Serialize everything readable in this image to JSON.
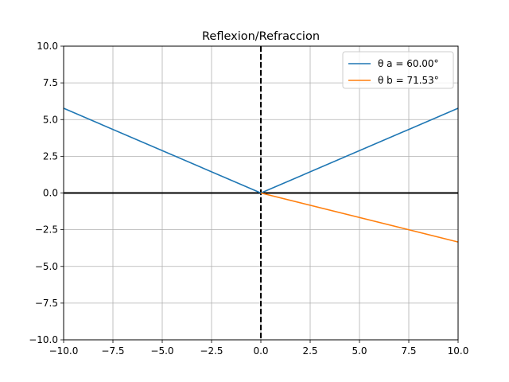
{
  "chart_data": {
    "type": "line",
    "title": "Reflexion/Refraccion",
    "xlabel": "",
    "ylabel": "",
    "xlim": [
      -10,
      10
    ],
    "ylim": [
      -10,
      10
    ],
    "x_ticks": [
      -10,
      -7.5,
      -5,
      -2.5,
      0,
      2.5,
      5,
      7.5,
      10
    ],
    "y_ticks": [
      -10,
      -7.5,
      -5,
      -2.5,
      0,
      2.5,
      5,
      7.5,
      10
    ],
    "x_tick_labels": [
      "−10.0",
      "−7.5",
      "−5.0",
      "−2.5",
      "0.0",
      "2.5",
      "5.0",
      "7.5",
      "10.0"
    ],
    "y_tick_labels": [
      "−10.0",
      "−7.5",
      "−5.0",
      "−2.5",
      "0.0",
      "2.5",
      "5.0",
      "7.5",
      "10.0"
    ],
    "grid": true,
    "legend_position": "top-right",
    "series": [
      {
        "name": "θ a = 60.00°",
        "color": "#1f77b4",
        "x": [
          -10,
          0,
          10
        ],
        "y": [
          5.77,
          0,
          5.77
        ]
      },
      {
        "name": "θ b = 71.53°",
        "color": "#ff7f0e",
        "x": [
          0,
          10
        ],
        "y": [
          0,
          -3.34
        ]
      }
    ],
    "reference_lines": [
      {
        "orientation": "horizontal",
        "value": 0,
        "style": "solid",
        "color": "#000000"
      },
      {
        "orientation": "vertical",
        "value": 0,
        "style": "dashed",
        "color": "#000000"
      }
    ]
  }
}
